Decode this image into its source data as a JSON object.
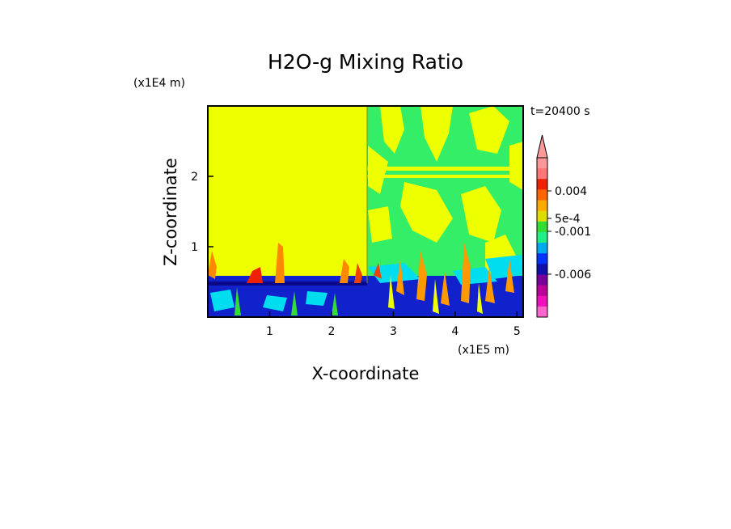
{
  "chart_data": {
    "type": "heatmap",
    "title": "H2O-g Mixing Ratio",
    "xlabel": "X-coordinate",
    "ylabel": "Z-coordinate",
    "x_unit_label": "(x1E5 m)",
    "y_unit_label": "(x1E4 m)",
    "time_label": "t=20400 s",
    "x_ticks": [
      "1",
      "2",
      "3",
      "4",
      "5"
    ],
    "y_ticks": [
      "1",
      "2"
    ],
    "xlim": [
      0,
      5.1
    ],
    "ylim": [
      0,
      3.0
    ],
    "colorbar": {
      "colors": [
        "#ff66cc",
        "#ee11bb",
        "#bb0099",
        "#770099",
        "#1111aa",
        "#0033ff",
        "#00aaee",
        "#22ee88",
        "#33dd33",
        "#dddd00",
        "#ffaa00",
        "#ff6600",
        "#ee2200",
        "#ff7777",
        "#ff9999"
      ],
      "labels": [
        "-0.006",
        "-0.001",
        "5e-4",
        "0.004"
      ],
      "extend_top": true
    },
    "regions": [
      {
        "name": "uniform-upper-left",
        "x": [
          0,
          2.55
        ],
        "z": [
          0.55,
          3.0
        ],
        "value_class": "5e-4 to 0.001 (yellow)"
      },
      {
        "name": "mixed-upper-right",
        "x": [
          2.55,
          5.1
        ],
        "z": [
          0.5,
          3.0
        ],
        "value_class": "-0.001 to 5e-4 (green/yellow)"
      },
      {
        "name": "boundary-layer",
        "x": [
          0,
          5.1
        ],
        "z": [
          0,
          0.5
        ],
        "value_class": "-0.006 to -0.001 (blue)"
      }
    ]
  }
}
